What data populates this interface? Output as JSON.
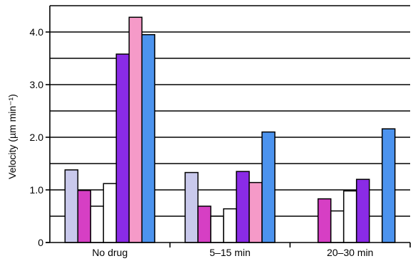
{
  "chart_data": {
    "type": "bar",
    "title": "",
    "xlabel": "",
    "ylabel": "Velocity (µm min⁻¹)",
    "ylim": [
      0,
      4.5
    ],
    "yticks": [
      {
        "value": 0,
        "label": "0"
      },
      {
        "value": 1,
        "label": "1.0"
      },
      {
        "value": 2,
        "label": "2.0"
      },
      {
        "value": 3,
        "label": "3.0"
      },
      {
        "value": 4,
        "label": "4.0"
      }
    ],
    "grid": true,
    "legend": "none",
    "categories": [
      "No drug",
      "5–15 min",
      "20–30 min"
    ],
    "series": [
      {
        "color": "#c9c9ec",
        "values": [
          1.38,
          1.33,
          null
        ]
      },
      {
        "color": "#d63fc4",
        "values": [
          0.99,
          0.69,
          0.83
        ]
      },
      {
        "color": "#ffffff",
        "values": [
          0.69,
          0.5,
          0.6
        ]
      },
      {
        "color": "#ffffff",
        "values": [
          1.12,
          0.64,
          0.98
        ]
      },
      {
        "color": "#8a2be6",
        "values": [
          3.58,
          1.35,
          1.2
        ]
      },
      {
        "color": "#f59ac8",
        "values": [
          4.28,
          1.14,
          null
        ]
      },
      {
        "color": "#4c93ee",
        "values": [
          3.95,
          2.1,
          2.16
        ]
      }
    ]
  }
}
